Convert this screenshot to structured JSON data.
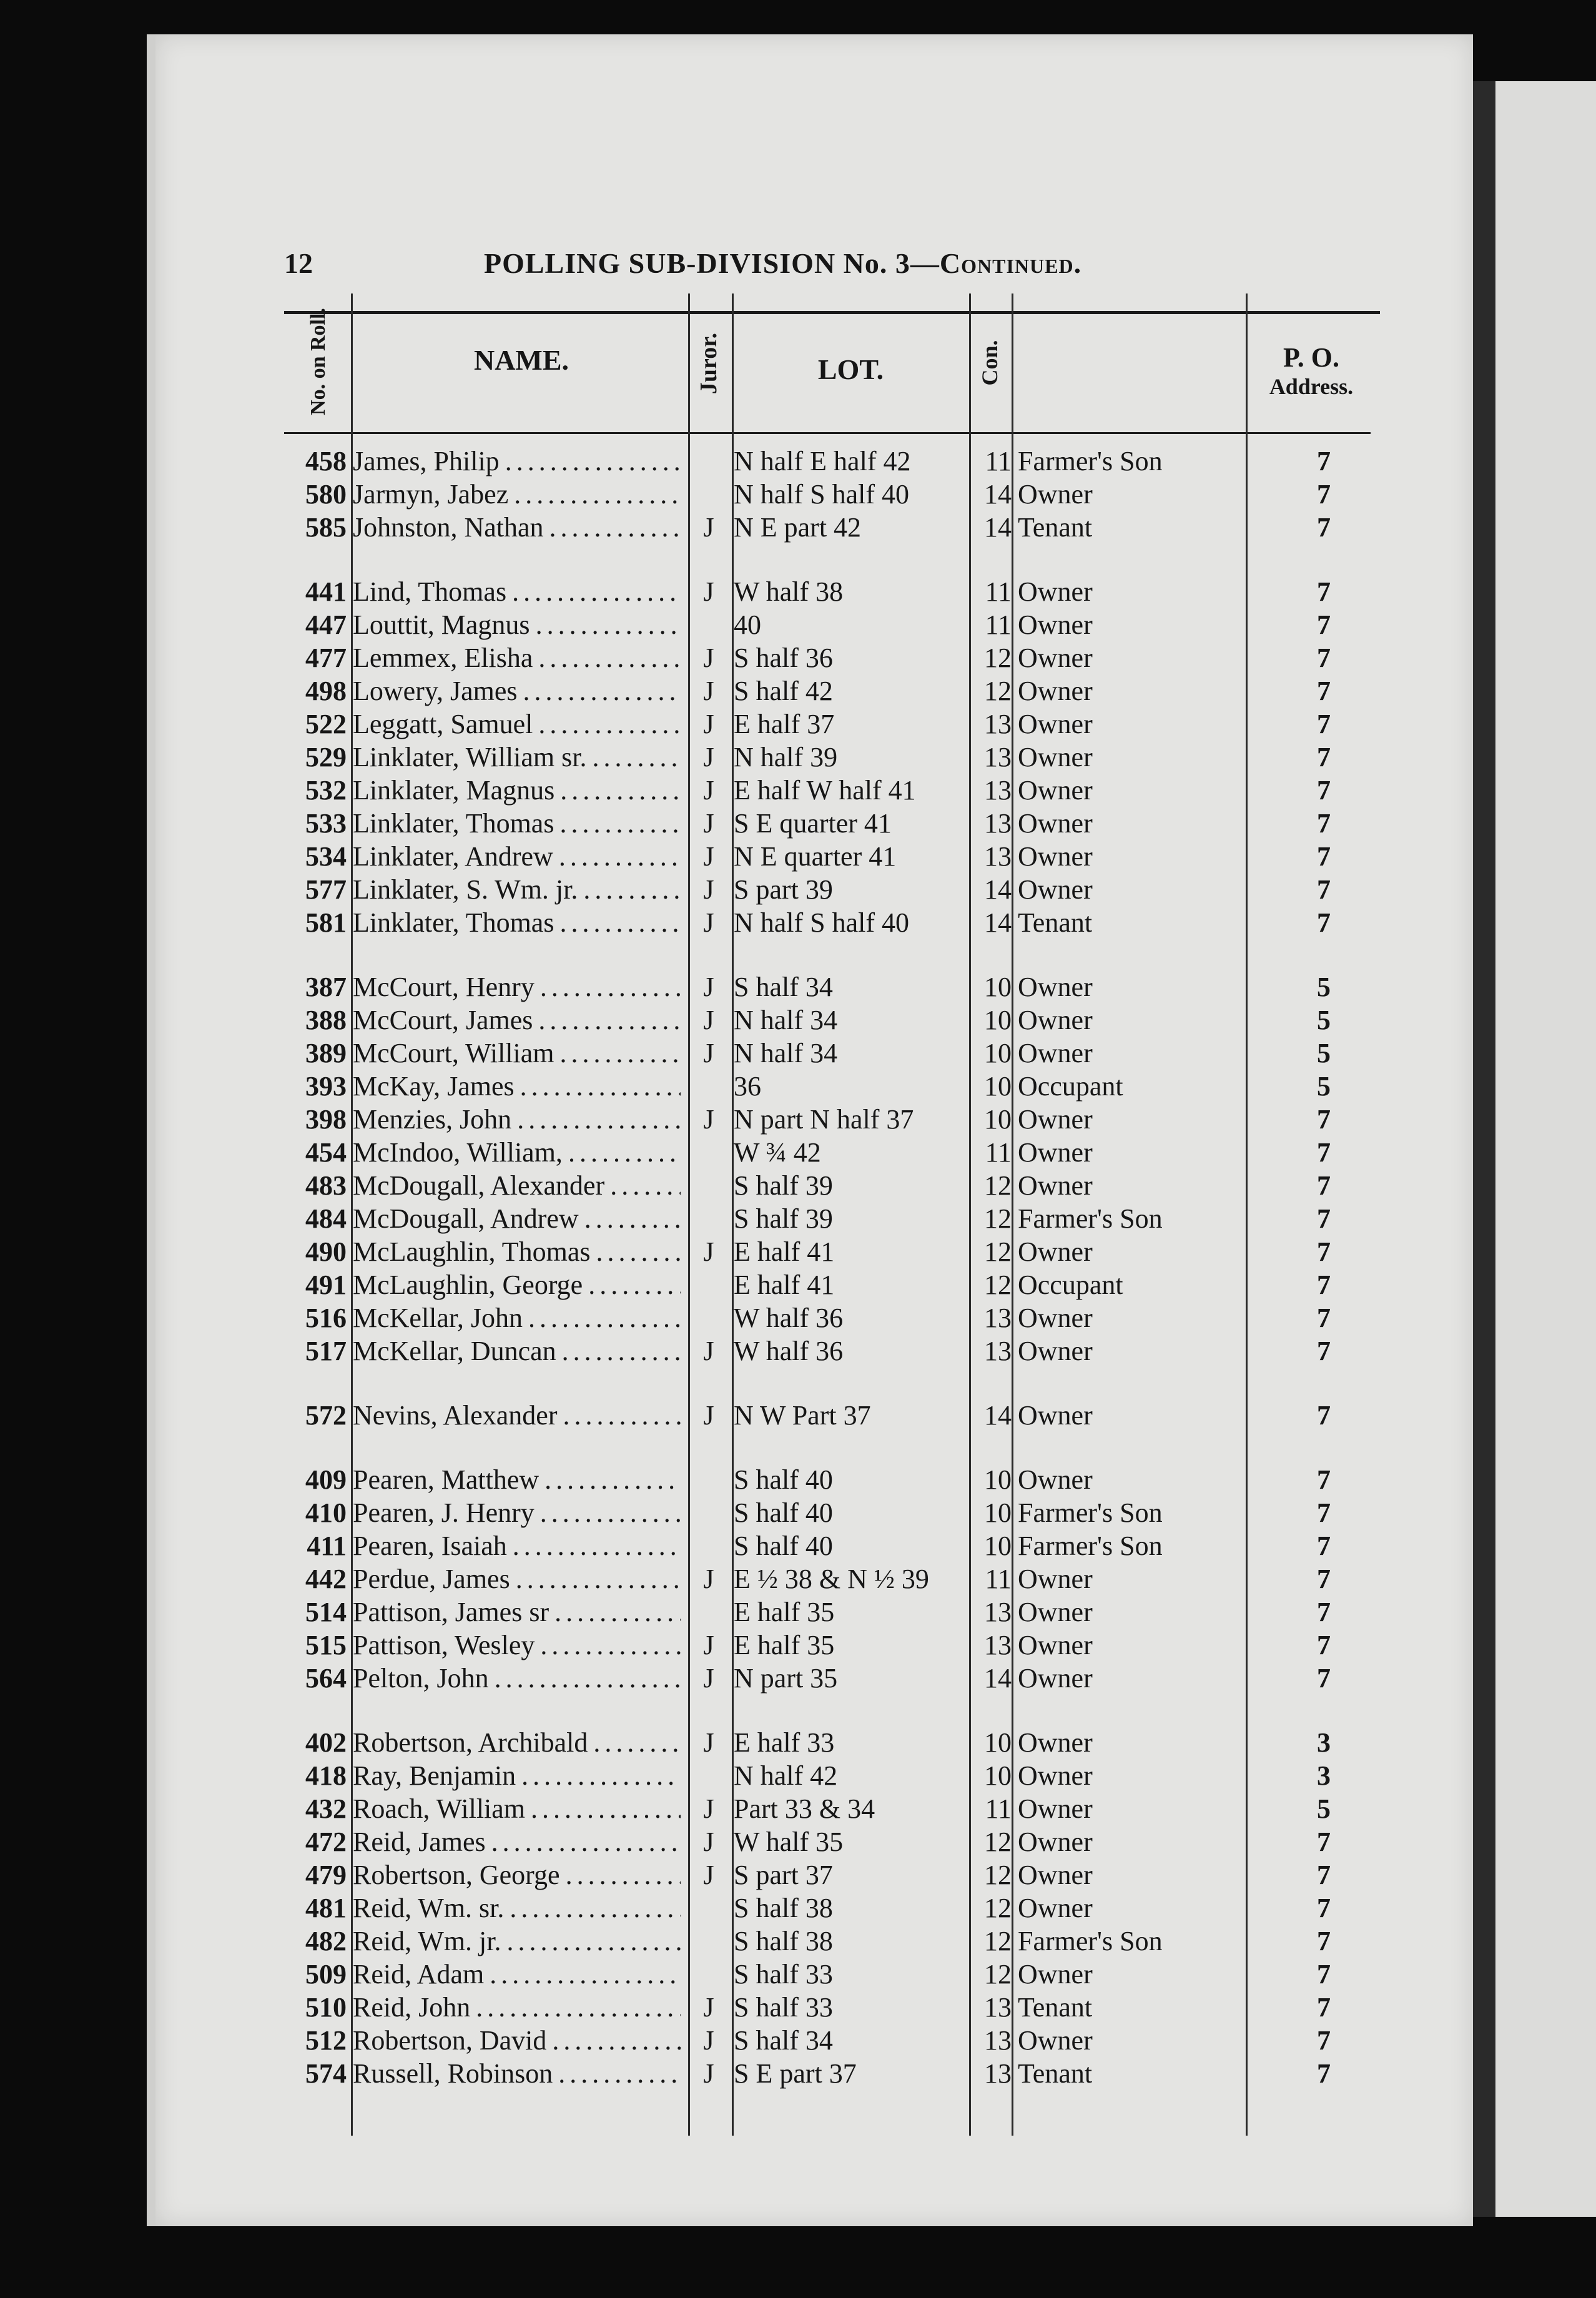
{
  "header": {
    "page_number": "12",
    "title": "POLLING SUB-DIVISION No. 3—",
    "title_continued": "Continued."
  },
  "columns": {
    "no_on_roll": "No. on Roll.",
    "name": "NAME.",
    "juror": "Juror.",
    "lot": "LOT.",
    "con": "Con.",
    "occupation": "",
    "po_address_1": "P. O.",
    "po_address_2": "Address."
  },
  "groups": [
    {
      "rows": [
        {
          "no": "458",
          "name": "James, Philip",
          "juror": "",
          "lot": "N half E half 42",
          "con": "11",
          "occupation": "Farmer's Son",
          "po": "7"
        },
        {
          "no": "580",
          "name": "Jarmyn, Jabez",
          "juror": "",
          "lot": "N half S half 40",
          "con": "14",
          "occupation": "Owner",
          "po": "7"
        },
        {
          "no": "585",
          "name": "Johnston, Nathan",
          "juror": "J",
          "lot": "N E part 42",
          "con": "14",
          "occupation": "Tenant",
          "po": "7"
        }
      ]
    },
    {
      "rows": [
        {
          "no": "441",
          "name": "Lind, Thomas",
          "juror": "J",
          "lot": "W half 38",
          "con": "11",
          "occupation": "Owner",
          "po": "7"
        },
        {
          "no": "447",
          "name": "Louttit, Magnus",
          "juror": "",
          "lot": "40",
          "con": "11",
          "occupation": "Owner",
          "po": "7"
        },
        {
          "no": "477",
          "name": "Lemmex, Elisha",
          "juror": "J",
          "lot": "S half 36",
          "con": "12",
          "occupation": "Owner",
          "po": "7"
        },
        {
          "no": "498",
          "name": "Lowery, James",
          "juror": "J",
          "lot": "S half 42",
          "con": "12",
          "occupation": "Owner",
          "po": "7"
        },
        {
          "no": "522",
          "name": "Leggatt, Samuel",
          "juror": "J",
          "lot": "E half 37",
          "con": "13",
          "occupation": "Owner",
          "po": "7"
        },
        {
          "no": "529",
          "name": "Linklater, William sr.",
          "juror": "J",
          "lot": "N half 39",
          "con": "13",
          "occupation": "Owner",
          "po": "7"
        },
        {
          "no": "532",
          "name": "Linklater, Magnus",
          "juror": "J",
          "lot": "E half W half 41",
          "con": "13",
          "occupation": "Owner",
          "po": "7"
        },
        {
          "no": "533",
          "name": "Linklater, Thomas",
          "juror": "J",
          "lot": "S E quarter 41",
          "con": "13",
          "occupation": "Owner",
          "po": "7"
        },
        {
          "no": "534",
          "name": "Linklater, Andrew",
          "juror": "J",
          "lot": "N E quarter 41",
          "con": "13",
          "occupation": "Owner",
          "po": "7"
        },
        {
          "no": "577",
          "name": "Linklater, S. Wm. jr.",
          "juror": "J",
          "lot": "S part 39",
          "con": "14",
          "occupation": "Owner",
          "po": "7"
        },
        {
          "no": "581",
          "name": "Linklater, Thomas",
          "juror": "J",
          "lot": "N half S half 40",
          "con": "14",
          "occupation": "Tenant",
          "po": "7"
        }
      ]
    },
    {
      "rows": [
        {
          "no": "387",
          "name": "McCourt, Henry",
          "juror": "J",
          "lot": "S half 34",
          "con": "10",
          "occupation": "Owner",
          "po": "5"
        },
        {
          "no": "388",
          "name": "McCourt, James",
          "juror": "J",
          "lot": "N half 34",
          "con": "10",
          "occupation": "Owner",
          "po": "5"
        },
        {
          "no": "389",
          "name": "McCourt, William",
          "juror": "J",
          "lot": "N half 34",
          "con": "10",
          "occupation": "Owner",
          "po": "5"
        },
        {
          "no": "393",
          "name": "McKay, James",
          "juror": "",
          "lot": "36",
          "con": "10",
          "occupation": "Occupant",
          "po": "5"
        },
        {
          "no": "398",
          "name": "Menzies, John",
          "juror": "J",
          "lot": "N part N half 37",
          "con": "10",
          "occupation": "Owner",
          "po": "7"
        },
        {
          "no": "454",
          "name": "McIndoo, William,",
          "juror": "",
          "lot": "W ¾ 42",
          "con": "11",
          "occupation": "Owner",
          "po": "7"
        },
        {
          "no": "483",
          "name": "McDougall, Alexander",
          "juror": "",
          "lot": "S half 39",
          "con": "12",
          "occupation": "Owner",
          "po": "7"
        },
        {
          "no": "484",
          "name": "McDougall, Andrew",
          "juror": "",
          "lot": "S half 39",
          "con": "12",
          "occupation": "Farmer's Son",
          "po": "7"
        },
        {
          "no": "490",
          "name": "McLaughlin, Thomas",
          "juror": "J",
          "lot": "E half 41",
          "con": "12",
          "occupation": "Owner",
          "po": "7"
        },
        {
          "no": "491",
          "name": "McLaughlin, George",
          "juror": "",
          "lot": "E half 41",
          "con": "12",
          "occupation": "Occupant",
          "po": "7"
        },
        {
          "no": "516",
          "name": "McKellar, John",
          "juror": "",
          "lot": "W half 36",
          "con": "13",
          "occupation": "Owner",
          "po": "7"
        },
        {
          "no": "517",
          "name": "McKellar, Duncan",
          "juror": "J",
          "lot": "W half 36",
          "con": "13",
          "occupation": "Owner",
          "po": "7"
        }
      ]
    },
    {
      "rows": [
        {
          "no": "572",
          "name": "Nevins, Alexander",
          "juror": "J",
          "lot": "N W Part 37",
          "con": "14",
          "occupation": "Owner",
          "po": "7"
        }
      ]
    },
    {
      "rows": [
        {
          "no": "409",
          "name": "Pearen, Matthew",
          "juror": "",
          "lot": "S half 40",
          "con": "10",
          "occupation": "Owner",
          "po": "7"
        },
        {
          "no": "410",
          "name": "Pearen, J. Henry",
          "juror": "",
          "lot": "S half 40",
          "con": "10",
          "occupation": "Farmer's Son",
          "po": "7"
        },
        {
          "no": "411",
          "name": "Pearen, Isaiah",
          "juror": "",
          "lot": "S half 40",
          "con": "10",
          "occupation": "Farmer's Son",
          "po": "7"
        },
        {
          "no": "442",
          "name": "Perdue, James",
          "juror": "J",
          "lot": "E ½ 38 & N ½ 39",
          "con": "11",
          "occupation": "Owner",
          "po": "7"
        },
        {
          "no": "514",
          "name": "Pattison, James sr",
          "juror": "",
          "lot": "E half 35",
          "con": "13",
          "occupation": "Owner",
          "po": "7"
        },
        {
          "no": "515",
          "name": "Pattison, Wesley",
          "juror": "J",
          "lot": "E half 35",
          "con": "13",
          "occupation": "Owner",
          "po": "7"
        },
        {
          "no": "564",
          "name": "Pelton, John",
          "juror": "J",
          "lot": "N part 35",
          "con": "14",
          "occupation": "Owner",
          "po": "7"
        }
      ]
    },
    {
      "rows": [
        {
          "no": "402",
          "name": "Robertson, Archibald",
          "juror": "J",
          "lot": "E half 33",
          "con": "10",
          "occupation": "Owner",
          "po": "3"
        },
        {
          "no": "418",
          "name": "Ray, Benjamin",
          "juror": "",
          "lot": "N half 42",
          "con": "10",
          "occupation": "Owner",
          "po": "3"
        },
        {
          "no": "432",
          "name": "Roach, William",
          "juror": "J",
          "lot": "Part 33 & 34",
          "con": "11",
          "occupation": "Owner",
          "po": "5"
        },
        {
          "no": "472",
          "name": "Reid, James",
          "juror": "J",
          "lot": "W half 35",
          "con": "12",
          "occupation": "Owner",
          "po": "7"
        },
        {
          "no": "479",
          "name": "Robertson, George",
          "juror": "J",
          "lot": "S part 37",
          "con": "12",
          "occupation": "Owner",
          "po": "7"
        },
        {
          "no": "481",
          "name": "Reid, Wm. sr.",
          "juror": "",
          "lot": "S half 38",
          "con": "12",
          "occupation": "Owner",
          "po": "7"
        },
        {
          "no": "482",
          "name": "Reid, Wm. jr.",
          "juror": "",
          "lot": "S half 38",
          "con": "12",
          "occupation": "Farmer's Son",
          "po": "7"
        },
        {
          "no": "509",
          "name": "Reid, Adam",
          "juror": "",
          "lot": "S half 33",
          "con": "12",
          "occupation": "Owner",
          "po": "7"
        },
        {
          "no": "510",
          "name": "Reid, John",
          "juror": "J",
          "lot": "S half 33",
          "con": "13",
          "occupation": "Tenant",
          "po": "7"
        },
        {
          "no": "512",
          "name": "Robertson, David",
          "juror": "J",
          "lot": "S half 34",
          "con": "13",
          "occupation": "Owner",
          "po": "7"
        },
        {
          "no": "574",
          "name": "Russell, Robinson",
          "juror": "J",
          "lot": "S E part 37",
          "con": "13",
          "occupation": "Tenant",
          "po": "7"
        }
      ]
    }
  ]
}
